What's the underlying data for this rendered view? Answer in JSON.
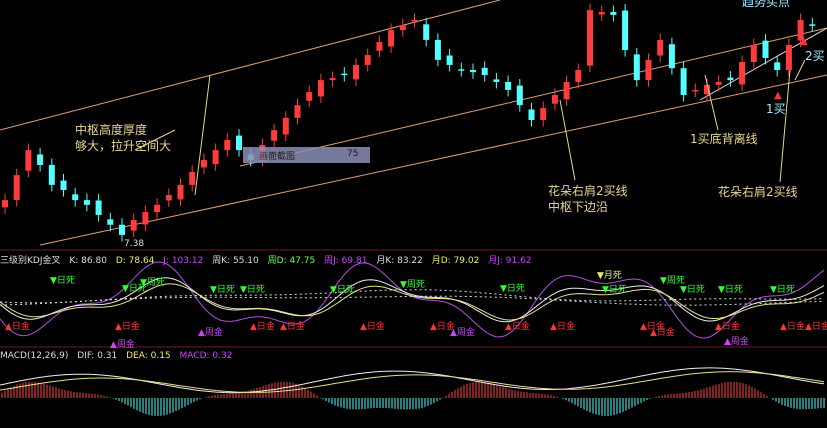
{
  "chart_data": [
    {
      "type": "candlestick",
      "title": "",
      "closes": [
        8.48,
        9.17,
        9.86,
        9.45,
        8.9,
        8.76,
        8.48,
        8.35,
        8.07,
        7.8,
        7.52,
        7.93,
        8.15,
        8.35,
        8.62,
        8.9,
        9.26,
        9.59,
        9.86,
        10.14,
        9.86,
        9.59,
        10.0,
        10.41,
        10.75,
        11.1,
        11.46,
        11.79,
        11.85,
        11.93,
        12.21,
        12.48,
        12.84,
        13.17,
        13.31,
        13.45,
        12.9,
        12.35,
        12.21,
        12.07,
        12.01,
        11.93,
        11.74,
        11.52,
        11.1,
        10.69,
        11.02,
        11.38,
        11.74,
        12.07,
        13.72,
        13.67,
        13.59,
        12.62,
        11.79,
        12.35,
        12.9,
        12.12,
        11.38,
        11.52,
        11.66,
        11.74,
        11.79,
        12.29,
        12.76,
        12.4,
        12.07,
        12.76,
        13.45,
        13.31
      ],
      "low_label": "7.38",
      "up_color": "#ff3b3b",
      "down_color": "#54ffff",
      "channel_color": "#e0a070",
      "annotations": {
        "thickness_1": "中枢高度厚度",
        "thickness_2": "够大，拉升空间大",
        "shoulder_1": "花朵右肩2买线",
        "shoulder_2": "中枢下边沿",
        "divergence": "1买底背离线",
        "shoulder_right": "花朵右肩2买线",
        "buy1": "1买",
        "buy2": "2买",
        "top_right": "趋势买点"
      },
      "tooltip": {
        "label": "画面截图",
        "value": "75"
      }
    },
    {
      "type": "line",
      "indicator": "KDJ",
      "header": {
        "name": "三级别KDJ金叉",
        "k": "K: 86.80",
        "d": "D: 78.64",
        "j": "J: 103.12",
        "wk": "周K: 55.10",
        "wd": "周D: 47.75",
        "wj": "周J: 69.81",
        "mk": "月K: 83.22",
        "md": "月D: 79.02",
        "mj": "月J: 91.62"
      },
      "signals": [
        "▼日死",
        "▼周死",
        "▼日死",
        "▼日死",
        "▼日死",
        "▼日死",
        "▼周死",
        "▼日死",
        "▼月死",
        "▼日死",
        "▼周死",
        "▼日死",
        "▼日死",
        "▼日死",
        "▲日金",
        "▲日金",
        "▲日金",
        "▲周金",
        "▲日金",
        "▲日金",
        "▲周金",
        "▲日金",
        "▲日金",
        "▲日金",
        "▲日金",
        "▲日金",
        "▲周金",
        "▲日金",
        "▲日金",
        "▲周金",
        "▲日金"
      ]
    },
    {
      "type": "bar",
      "indicator": "MACD",
      "header": {
        "name": "MACD(12,26,9)",
        "dif": "DIF: 0.31",
        "dea": "DEA: 0.15",
        "macd": "MACD: 0.32"
      }
    }
  ]
}
